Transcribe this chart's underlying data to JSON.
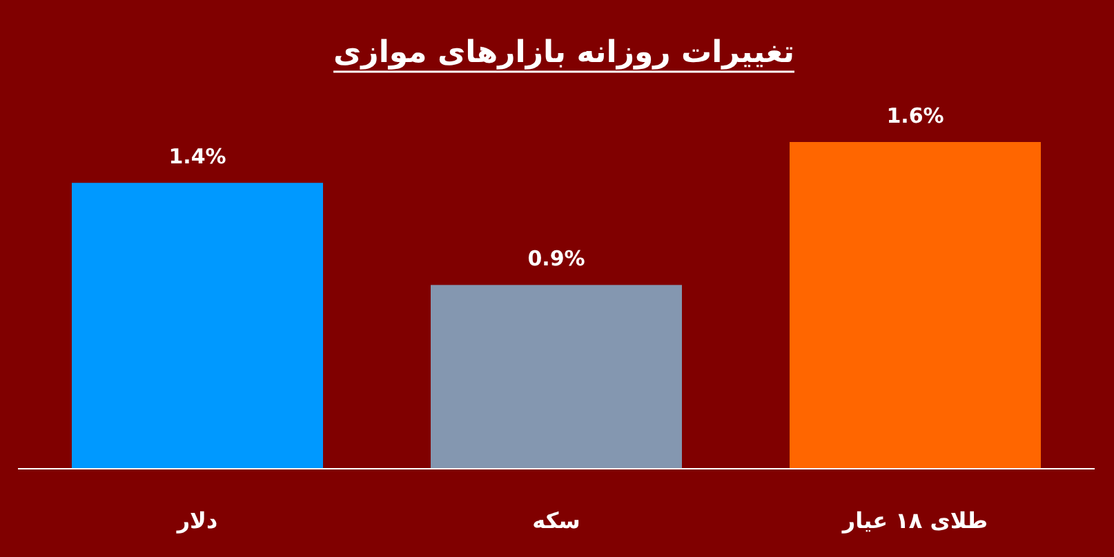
{
  "chart_data": {
    "type": "bar",
    "title": "تغییرات روزانه بازارهای موازی",
    "categories": [
      "دلار",
      "سکه",
      "طلای ۱۸ عیار"
    ],
    "values": [
      1.4,
      0.9,
      1.6
    ],
    "colors": [
      "#0099ff",
      "#8497b0",
      "#ff6600"
    ],
    "value_labels": [
      "1.4%",
      "0.9%",
      "1.6%"
    ]
  }
}
